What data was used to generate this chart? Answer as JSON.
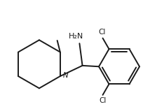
{
  "bg_color": "#ffffff",
  "line_color": "#1a1a1a",
  "text_color": "#1a1a1a",
  "label_NH2": "H₂N",
  "label_N": "N",
  "label_Cl1": "Cl",
  "label_Cl2": "Cl",
  "line_width": 1.4,
  "font_size_labels": 7.5,
  "figsize": [
    2.14,
    1.56
  ],
  "dpi": 100
}
